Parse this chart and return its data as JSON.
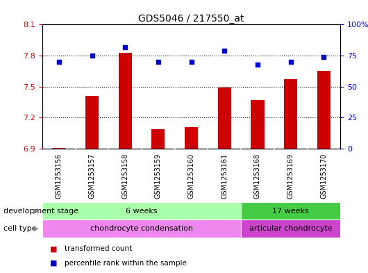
{
  "title": "GDS5046 / 217550_at",
  "samples": [
    "GSM1253156",
    "GSM1253157",
    "GSM1253158",
    "GSM1253159",
    "GSM1253160",
    "GSM1253161",
    "GSM1253168",
    "GSM1253169",
    "GSM1253170"
  ],
  "transformed_count": [
    6.91,
    7.41,
    7.83,
    7.09,
    7.11,
    7.49,
    7.37,
    7.57,
    7.65
  ],
  "percentile_rank": [
    70,
    75,
    82,
    70,
    70,
    79,
    68,
    70,
    74
  ],
  "ylim_left": [
    6.9,
    8.1
  ],
  "ylim_right": [
    0,
    100
  ],
  "yticks_left": [
    6.9,
    7.2,
    7.5,
    7.8,
    8.1
  ],
  "yticks_right": [
    0,
    25,
    50,
    75,
    100
  ],
  "bar_color": "#cc0000",
  "dot_color": "#0000cc",
  "bar_bottom": 6.9,
  "development_stage_groups": [
    {
      "label": "6 weeks",
      "start": 0,
      "end": 6,
      "color": "#aaffaa"
    },
    {
      "label": "17 weeks",
      "start": 6,
      "end": 9,
      "color": "#44cc44"
    }
  ],
  "cell_type_groups": [
    {
      "label": "chondrocyte condensation",
      "start": 0,
      "end": 6,
      "color": "#ee88ee"
    },
    {
      "label": "articular chondrocyte",
      "start": 6,
      "end": 9,
      "color": "#cc44cc"
    }
  ],
  "dev_stage_label": "development stage",
  "cell_type_label": "cell type",
  "legend_bar_label": "transformed count",
  "legend_dot_label": "percentile rank within the sample",
  "background_color": "#ffffff",
  "plot_bg_color": "#ffffff",
  "tick_label_color_left": "#cc0000",
  "tick_label_color_right": "#0000cc",
  "grid_color": "#000000",
  "sample_bg_color": "#cccccc",
  "sample_divider_color": "#ffffff"
}
